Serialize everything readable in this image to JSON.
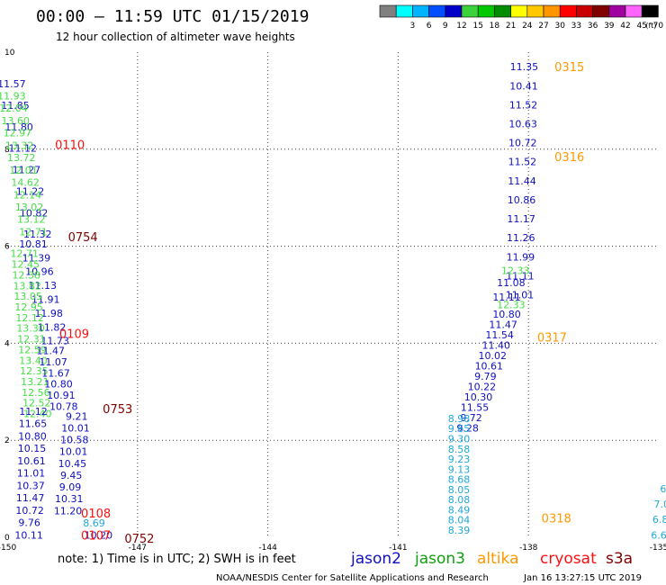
{
  "header": {
    "title": "00:00 – 11:59 UTC 01/15/2019",
    "subtitle": "12 hour collection of altimeter wave heights"
  },
  "legend": {
    "unit": "(ft)",
    "swatches": [
      {
        "label": "",
        "color": "#808080"
      },
      {
        "label": "3",
        "color": "#00ffff"
      },
      {
        "label": "6",
        "color": "#00b4ff"
      },
      {
        "label": "9",
        "color": "#0050ff"
      },
      {
        "label": "12",
        "color": "#0000c8"
      },
      {
        "label": "15",
        "color": "#3cd23c"
      },
      {
        "label": "18",
        "color": "#00c800"
      },
      {
        "label": "21",
        "color": "#008c00"
      },
      {
        "label": "24",
        "color": "#ffff00"
      },
      {
        "label": "27",
        "color": "#ffc800"
      },
      {
        "label": "30",
        "color": "#ff9600"
      },
      {
        "label": "33",
        "color": "#ff0000"
      },
      {
        "label": "36",
        "color": "#c80000"
      },
      {
        "label": "39",
        "color": "#800000"
      },
      {
        "label": "42",
        "color": "#a000a0"
      },
      {
        "label": "45",
        "color": "#ff64ff"
      },
      {
        "label": "70",
        "color": "#000000"
      }
    ]
  },
  "footer": {
    "note": "note:  1) Time is in UTC;  2) SWH is in feet",
    "credit": "NOAA/NESDIS Center for Satellite Applications and Research",
    "timestamp": "Jan 16 13:27:15 UTC 2019",
    "satellites": [
      {
        "name": "jason2",
        "color": "#1010c0"
      },
      {
        "name": "jason3",
        "color": "#10a010"
      },
      {
        "name": "altika",
        "color": "#ff9900"
      },
      {
        "name": "cryosat",
        "color": "#ff1010"
      },
      {
        "name": "s3a",
        "color": "#800000"
      }
    ]
  },
  "chart_data": {
    "type": "scatter",
    "title": "00:00 – 11:59 UTC 01/15/2019",
    "subtitle": "12 hour collection of altimeter wave heights",
    "xlim": [
      -150,
      -135
    ],
    "ylim": [
      0,
      10
    ],
    "x_ticks": [
      "-150",
      "-147",
      "-144",
      "-141",
      "-138",
      "-135"
    ],
    "y_ticks": [
      "0",
      "2",
      "4",
      "6",
      "8",
      "10"
    ],
    "grid": true,
    "colors": {
      "blue": "#1010c0",
      "green": "#44dd44",
      "cyan": "#20a8d8",
      "orange": "#ff9900",
      "red": "#ff1010",
      "maroon": "#800000"
    },
    "time_labels": [
      {
        "text": "0315",
        "x": -137.4,
        "y": 9.7,
        "color": "orange"
      },
      {
        "text": "0316",
        "x": -137.4,
        "y": 7.85,
        "color": "orange"
      },
      {
        "text": "0317",
        "x": -137.8,
        "y": 4.13,
        "color": "orange"
      },
      {
        "text": "0318",
        "x": -137.7,
        "y": 0.4,
        "color": "orange"
      },
      {
        "text": "0110",
        "x": -148.9,
        "y": 8.1,
        "color": "red"
      },
      {
        "text": "0109",
        "x": -148.8,
        "y": 4.2,
        "color": "red"
      },
      {
        "text": "0108",
        "x": -148.3,
        "y": 0.5,
        "color": "red"
      },
      {
        "text": "0107",
        "x": -148.3,
        "y": 0.05,
        "color": "red"
      },
      {
        "text": "0754",
        "x": -148.6,
        "y": 6.2,
        "color": "maroon"
      },
      {
        "text": "0753",
        "x": -147.8,
        "y": 2.65,
        "color": "maroon"
      },
      {
        "text": "0752",
        "x": -147.3,
        "y": -0.02,
        "color": "maroon"
      }
    ],
    "tracks": [
      {
        "name": "left-blue-a",
        "color": "blue",
        "x_start": -149.9,
        "x_end": -149.3,
        "y_start": 9.35,
        "y_end": 6.25,
        "values": [
          "11.57",
          "11.85",
          "11.80",
          "11.12",
          "11.27",
          "11.22",
          "10.82",
          "11.32"
        ]
      },
      {
        "name": "left-green-a",
        "color": "green",
        "x_start": -149.9,
        "x_end": -149.4,
        "y_start": 9.1,
        "y_end": 6.3,
        "values": [
          "11.93",
          "12.04",
          "13.60",
          "12.97",
          "13.32",
          "13.72",
          "12.01",
          "14.62",
          "12.14",
          "13.02",
          "13.12",
          "12.71"
        ]
      },
      {
        "name": "left-blue-b",
        "color": "blue",
        "x_start": -149.4,
        "x_end": -148.9,
        "y_start": 6.05,
        "y_end": 4.05,
        "values": [
          "10.81",
          "11.39",
          "10.96",
          "11.13",
          "11.91",
          "11.98",
          "11.82",
          "11.73"
        ]
      },
      {
        "name": "left-green-b",
        "color": "green",
        "x_start": -149.6,
        "x_end": -149.3,
        "y_start": 5.85,
        "y_end": 2.55,
        "values": [
          "12.71",
          "12.45",
          "12.38",
          "13.82",
          "13.05",
          "12.95",
          "12.12",
          "13.30",
          "12.31",
          "12.59",
          "13.40",
          "12.35",
          "13.21",
          "12.56",
          "12.52",
          "12.40"
        ]
      },
      {
        "name": "left-blue-c",
        "color": "blue",
        "x_start": -149.0,
        "x_end": -148.7,
        "y_start": 3.85,
        "y_end": 2.7,
        "values": [
          "11.47",
          "11.07",
          "11.67",
          "10.80",
          "10.91",
          "10.78"
        ]
      },
      {
        "name": "left-blue-d",
        "color": "blue",
        "x_start": -149.4,
        "x_end": -149.5,
        "y_start": 2.6,
        "y_end": 0.05,
        "values": [
          "11.12",
          "11.65",
          "10.80",
          "10.15",
          "10.61",
          "11.01",
          "10.37",
          "11.47",
          "10.72",
          "9.76",
          "10.11"
        ]
      },
      {
        "name": "left-blue-e",
        "color": "blue",
        "x_start": -148.4,
        "x_end": -148.6,
        "y_start": 2.5,
        "y_end": 0.55,
        "values": [
          "9.21",
          "10.01",
          "10.58",
          "10.01",
          "10.45",
          "9.45",
          "9.09",
          "10.31",
          "11.20"
        ]
      },
      {
        "name": "left-cyan",
        "color": "cyan",
        "x_start": -148.0,
        "x_end": -148.0,
        "y_start": 0.3,
        "y_end": 0.3,
        "values": [
          "8.69"
        ]
      },
      {
        "name": "left-blue-f",
        "color": "blue",
        "x_start": -147.9,
        "x_end": -147.9,
        "y_start": 0.05,
        "y_end": 0.05,
        "values": [
          "10.20"
        ]
      },
      {
        "name": "right-blue-a",
        "color": "blue",
        "x_start": -138.1,
        "x_end": -138.2,
        "y_start": 9.7,
        "y_end": 5.0,
        "values": [
          "11.35",
          "10.41",
          "11.52",
          "10.63",
          "10.72",
          "11.52",
          "11.44",
          "10.86",
          "11.17",
          "11.26",
          "11.99",
          "11.11",
          "11.01"
        ]
      },
      {
        "name": "right-green-a",
        "color": "green",
        "x_start": -138.3,
        "x_end": -138.3,
        "y_start": 5.5,
        "y_end": 5.5,
        "values": [
          "12.33"
        ]
      },
      {
        "name": "right-blue-b",
        "color": "blue",
        "x_start": -138.4,
        "x_end": -138.5,
        "y_start": 5.25,
        "y_end": 4.95,
        "values": [
          "11.08",
          "11.11"
        ]
      },
      {
        "name": "right-green-b",
        "color": "green",
        "x_start": -138.4,
        "x_end": -138.4,
        "y_start": 4.8,
        "y_end": 4.8,
        "values": [
          "12.33"
        ]
      },
      {
        "name": "right-blue-c",
        "color": "blue",
        "x_start": -138.5,
        "x_end": -139.4,
        "y_start": 4.6,
        "y_end": 2.25,
        "values": [
          "10.80",
          "11.47",
          "11.54",
          "11.40",
          "10.02",
          "10.61",
          "9.79",
          "10.22",
          "10.30",
          "11.55",
          "9.72",
          "9.28"
        ]
      },
      {
        "name": "right-mixed",
        "color": "cyan",
        "x_start": -139.6,
        "x_end": -139.6,
        "y_start": 2.45,
        "y_end": 0.15,
        "values": [
          "8.98",
          "9.65",
          "9.30",
          "8.58",
          "9.23",
          "9.13",
          "8.68",
          "8.05",
          "8.08",
          "8.49",
          "8.04",
          "8.39"
        ]
      },
      {
        "name": "far-right-cyan",
        "color": "cyan",
        "x_start": -134.9,
        "x_end": -135.0,
        "y_start": 1.0,
        "y_end": 0.05,
        "values": [
          "6",
          "7.0",
          "6.8",
          "6.6"
        ]
      }
    ]
  }
}
